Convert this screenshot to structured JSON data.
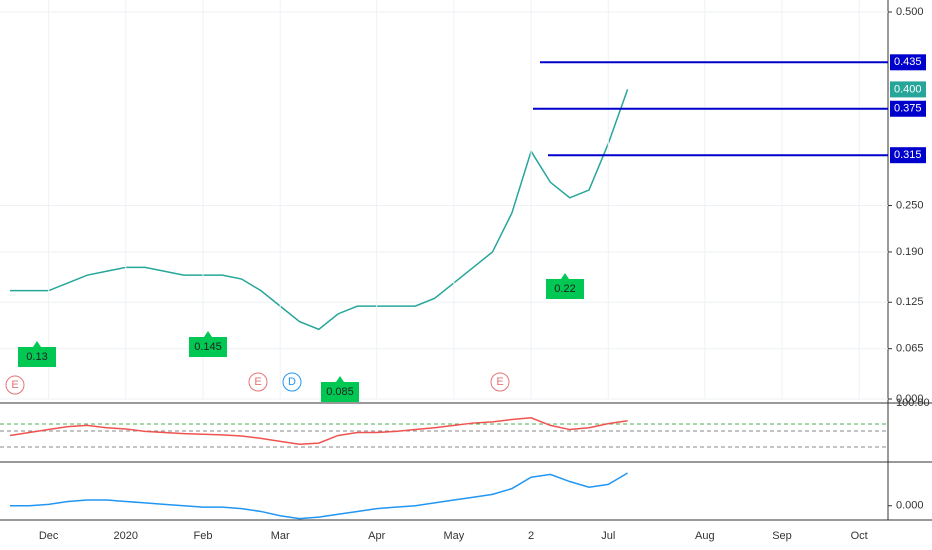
{
  "chart_data": [
    {
      "type": "line",
      "color": "#26a69a",
      "categories": [
        null,
        null,
        "Dec",
        null,
        null,
        null,
        "2020",
        null,
        null,
        null,
        "Feb",
        null,
        null,
        null,
        "Mar",
        null,
        null,
        null,
        null,
        "Apr",
        null,
        null,
        null,
        "May",
        null,
        null,
        null,
        "2",
        null,
        null,
        null,
        "Jul",
        null,
        null,
        null,
        null,
        "Aug",
        null,
        null,
        null,
        "Sep",
        null,
        null,
        null,
        "Oct"
      ],
      "values": [
        0.14,
        0.14,
        0.14,
        0.15,
        0.16,
        0.165,
        0.17,
        0.17,
        0.165,
        0.16,
        0.16,
        0.16,
        0.155,
        0.14,
        0.12,
        0.1,
        0.09,
        0.11,
        0.12,
        0.12,
        0.12,
        0.12,
        0.13,
        0.15,
        0.17,
        0.19,
        0.24,
        0.32,
        0.28,
        0.26,
        0.27,
        0.33,
        0.4,
        null,
        null,
        null,
        null,
        null,
        null,
        null,
        null,
        null,
        null,
        null,
        null
      ],
      "ylim": [
        0,
        0.5
      ],
      "yticks": [
        {
          "value": 0,
          "label": "0.000"
        },
        {
          "value": 0.065,
          "label": "0.065"
        },
        {
          "value": 0.125,
          "label": "0.125"
        },
        {
          "value": 0.19,
          "label": "0.190"
        },
        {
          "value": 0.25,
          "label": "0.250"
        },
        {
          "value": 0.5,
          "label": "0.500"
        }
      ],
      "levels": [
        {
          "value": 0.435,
          "label": "0.435"
        },
        {
          "value": 0.375,
          "label": "0.375"
        },
        {
          "value": 0.315,
          "label": "0.315"
        }
      ],
      "last_price": {
        "value": 0.4,
        "label": "0.400"
      },
      "annotations": [
        "0.13",
        "0.145",
        "0.085",
        "0.22",
        "E",
        "E",
        "E",
        "D"
      ],
      "grid": true
    },
    {
      "type": "line",
      "color": "#ef5350",
      "values": [
        45,
        50,
        55,
        60,
        62,
        58,
        56,
        52,
        50,
        48,
        47,
        46,
        44,
        40,
        35,
        30,
        32,
        45,
        50,
        50,
        52,
        55,
        58,
        62,
        66,
        68,
        72,
        75,
        62,
        55,
        58,
        65,
        70,
        null,
        null,
        null,
        null,
        null,
        null,
        null,
        null,
        null,
        null,
        null,
        null
      ],
      "ylim": [
        0,
        100
      ],
      "yticks": [
        {
          "value": 100,
          "label": "100.00"
        }
      ]
    },
    {
      "type": "line",
      "color": "#2196f3",
      "values": [
        0,
        0,
        0.001,
        0.003,
        0.004,
        0.004,
        0.003,
        0.002,
        0.001,
        0,
        -0.001,
        -0.001,
        -0.002,
        -0.004,
        -0.007,
        -0.009,
        -0.008,
        -0.006,
        -0.004,
        -0.002,
        -0.001,
        0,
        0.002,
        0.004,
        0.006,
        0.008,
        0.012,
        0.02,
        0.022,
        0.017,
        0.013,
        0.015,
        0.023,
        null,
        null,
        null,
        null,
        null,
        null,
        null,
        null,
        null,
        null,
        null,
        null
      ],
      "ylim": [
        -0.01,
        0.03
      ],
      "yticks": [
        {
          "value": 0,
          "label": "0.000"
        }
      ]
    }
  ]
}
